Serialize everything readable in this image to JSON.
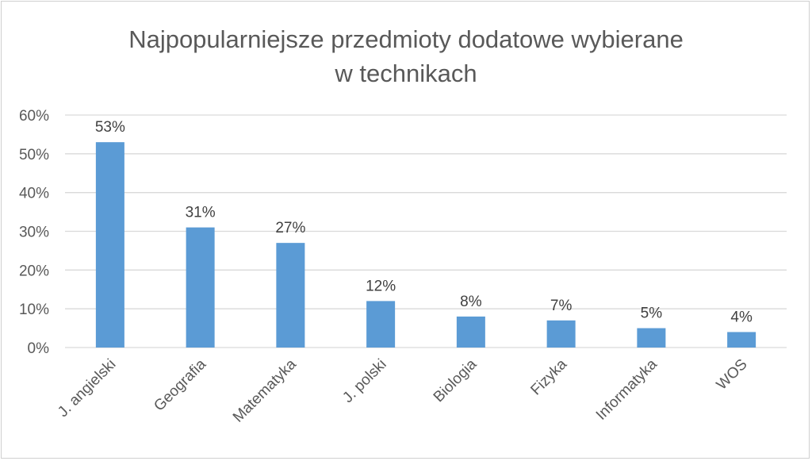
{
  "chart_data": {
    "type": "bar",
    "title_lines": [
      "Najpopularniejsze przedmioty dodatowe wybierane",
      "w technikach"
    ],
    "categories": [
      "J. angielski",
      "Geografia",
      "Matematyka",
      "J. polski",
      "Biologia",
      "Fizyka",
      "Informatyka",
      "WOS"
    ],
    "values": [
      53,
      31,
      27,
      12,
      8,
      7,
      5,
      4
    ],
    "data_labels": [
      "53%",
      "31%",
      "27%",
      "12%",
      "8%",
      "7%",
      "5%",
      "4%"
    ],
    "y_ticks": [
      "0%",
      "10%",
      "20%",
      "30%",
      "40%",
      "50%",
      "60%"
    ],
    "ylim": [
      0,
      60
    ],
    "xlabel": "",
    "ylabel": "",
    "grid": true,
    "legend": "none",
    "bar_color": "#5b9bd5",
    "grid_color": "#d9d9d9"
  }
}
